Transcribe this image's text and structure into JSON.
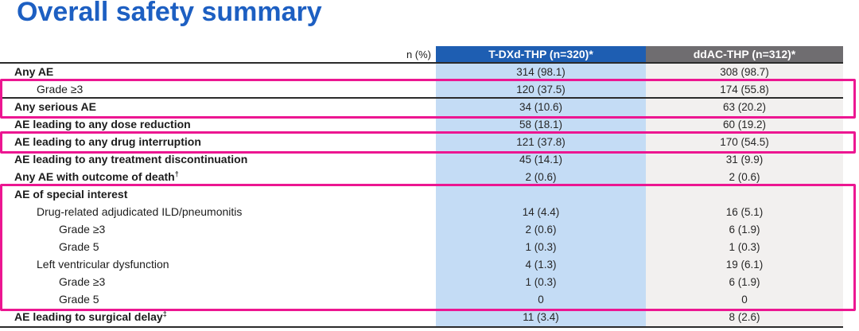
{
  "title": "Overall safety summary",
  "table": {
    "measure_label": "n (%)",
    "columns": [
      {
        "label": "T-DXd-THP (n=320)*"
      },
      {
        "label": "ddAC-THP (n=312)*"
      }
    ],
    "rows": [
      {
        "label": "Any AE",
        "marker": "",
        "indent": 0,
        "bold": true,
        "rule_below": false,
        "values": [
          "314 (98.1)",
          "308 (98.7)"
        ]
      },
      {
        "label": "Grade ≥3",
        "marker": "",
        "indent": 1,
        "bold": false,
        "rule_below": true,
        "values": [
          "120 (37.5)",
          "174 (55.8)"
        ]
      },
      {
        "label": "Any serious AE",
        "marker": "",
        "indent": 0,
        "bold": true,
        "rule_below": false,
        "values": [
          "34 (10.6)",
          "63 (20.2)"
        ]
      },
      {
        "label": "AE leading to any dose reduction",
        "marker": "",
        "indent": 0,
        "bold": true,
        "rule_below": false,
        "values": [
          "58 (18.1)",
          "60 (19.2)"
        ]
      },
      {
        "label": "AE leading to any drug interruption",
        "marker": "",
        "indent": 0,
        "bold": true,
        "rule_below": false,
        "values": [
          "121 (37.8)",
          "170 (54.5)"
        ]
      },
      {
        "label": "AE leading to any treatment discontinuation",
        "marker": "",
        "indent": 0,
        "bold": true,
        "rule_below": false,
        "values": [
          "45 (14.1)",
          "31 (9.9)"
        ]
      },
      {
        "label": "Any AE with outcome of death",
        "marker": "†",
        "indent": 0,
        "bold": true,
        "rule_below": false,
        "values": [
          "2 (0.6)",
          "2 (0.6)"
        ]
      },
      {
        "label": "AE of special interest",
        "marker": "",
        "indent": 0,
        "bold": true,
        "rule_below": false,
        "values": [
          "",
          ""
        ]
      },
      {
        "label": "Drug-related adjudicated ILD/pneumonitis",
        "marker": "",
        "indent": 1,
        "bold": false,
        "rule_below": false,
        "values": [
          "14 (4.4)",
          "16 (5.1)"
        ]
      },
      {
        "label": "Grade ≥3",
        "marker": "",
        "indent": 2,
        "bold": false,
        "rule_below": false,
        "values": [
          "2 (0.6)",
          "6 (1.9)"
        ]
      },
      {
        "label": "Grade 5",
        "marker": "",
        "indent": 2,
        "bold": false,
        "rule_below": false,
        "values": [
          "1 (0.3)",
          "1 (0.3)"
        ]
      },
      {
        "label": "Left ventricular dysfunction",
        "marker": "",
        "indent": 1,
        "bold": false,
        "rule_below": false,
        "values": [
          "4 (1.3)",
          "19 (6.1)"
        ]
      },
      {
        "label": "Grade ≥3",
        "marker": "",
        "indent": 2,
        "bold": false,
        "rule_below": false,
        "values": [
          "1 (0.3)",
          "6 (1.9)"
        ]
      },
      {
        "label": "Grade 5",
        "marker": "",
        "indent": 2,
        "bold": false,
        "rule_below": false,
        "values": [
          "0",
          "0"
        ]
      },
      {
        "label": "AE leading to surgical delay",
        "marker": "‡",
        "indent": 0,
        "bold": true,
        "rule_below": false,
        "values": [
          "11 (3.4)",
          "8 (2.6)"
        ]
      }
    ]
  },
  "highlights": [
    {
      "id": "grade3-serious",
      "first_row": 1,
      "row_count": 2
    },
    {
      "id": "drug-interruption",
      "first_row": 4,
      "row_count": 1
    },
    {
      "id": "special-interest",
      "first_row": 7,
      "row_count": 7
    }
  ],
  "colors": {
    "title_blue": "#1d5fc2",
    "header_blue": "#1e5eb2",
    "header_gray": "#6f6d70",
    "column_blue": "#c4dcf5",
    "column_gray": "#f2f0ef",
    "rule_black": "#2b2b2b",
    "highlight_pink": "#ec1691"
  }
}
